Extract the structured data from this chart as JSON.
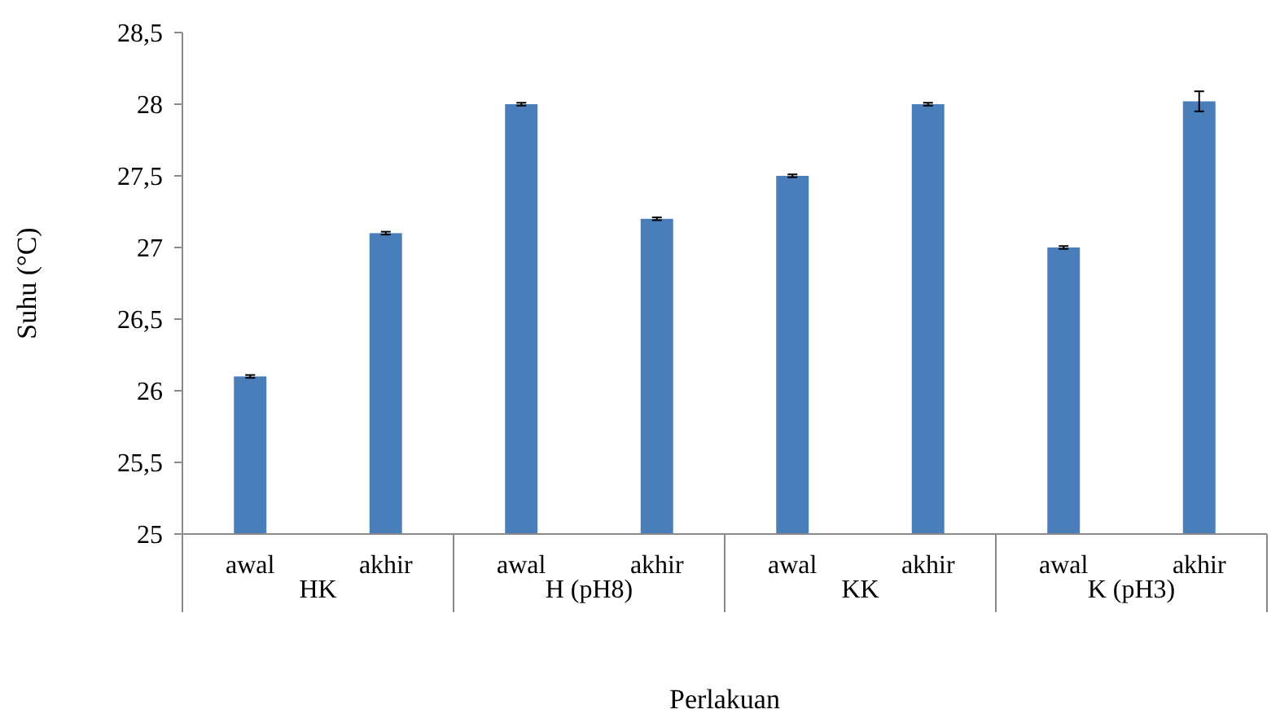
{
  "chart_data": {
    "type": "bar",
    "xlabel": "Perlakuan",
    "ylabel": "Suhu (°C)",
    "categories": [
      "awal",
      "akhir",
      "awal",
      "akhir",
      "awal",
      "akhir",
      "awal",
      "akhir"
    ],
    "annotations": [
      "HK",
      "H (pH8)",
      "KK",
      "K (pH3)"
    ],
    "values": [
      26.1,
      27.1,
      28.0,
      27.2,
      27.5,
      28.0,
      27.0,
      28.02
    ],
    "errors": [
      0.01,
      0.01,
      0.01,
      0.01,
      0.01,
      0.01,
      0.01,
      0.07
    ],
    "color": "#4a7ebb",
    "ylim": [
      25,
      28.5
    ],
    "yticks": [
      25,
      {
        "value": 25.5,
        "label": "25,5"
      },
      26,
      {
        "value": 26.5,
        "label": "26,5"
      },
      27,
      {
        "value": 27.5,
        "label": "27,5"
      },
      28,
      {
        "value": 28.5,
        "label": "28,5"
      }
    ],
    "grid": false
  }
}
